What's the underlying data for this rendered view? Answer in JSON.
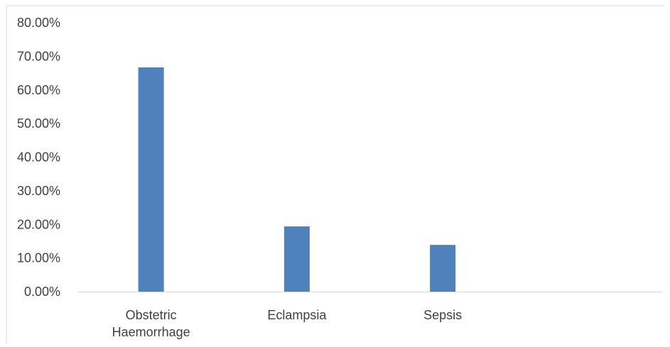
{
  "chart_data": {
    "type": "bar",
    "categories": [
      "Obstetric Haemorrhage",
      "Eclampsia",
      "Sepsis",
      ""
    ],
    "category_label_lines": [
      [
        "Obstetric",
        "Haemorrhage"
      ],
      [
        "Eclampsia"
      ],
      [
        "Sepsis"
      ],
      []
    ],
    "values": [
      0.667,
      0.194,
      0.139,
      null
    ],
    "ylim": [
      0,
      0.8
    ],
    "yticks": [
      0,
      0.1,
      0.2,
      0.3,
      0.4,
      0.5,
      0.6,
      0.7,
      0.8
    ],
    "ytick_labels": [
      "0.00%",
      "10.00%",
      "20.00%",
      "30.00%",
      "40.00%",
      "50.00%",
      "60.00%",
      "70.00%",
      "80.00%"
    ],
    "title": "",
    "xlabel": "",
    "ylabel": "",
    "grid": false,
    "legend": "none",
    "colors": {
      "bar": "#4F81BD",
      "axis": "#D9D9D9",
      "text": "#404040"
    }
  }
}
